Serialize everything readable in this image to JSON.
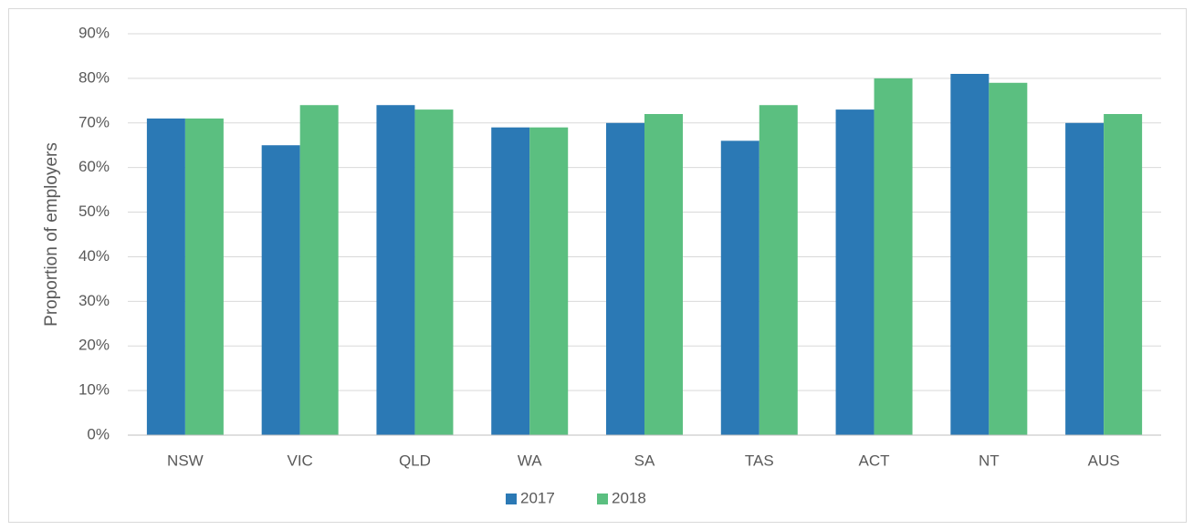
{
  "chart_data": {
    "type": "bar",
    "y_label": "Proportion of employers",
    "categories": [
      "NSW",
      "VIC",
      "QLD",
      "WA",
      "SA",
      "TAS",
      "ACT",
      "NT",
      "AUS"
    ],
    "series": [
      {
        "name": "2017",
        "color": "#2b79b5",
        "values": [
          71,
          65,
          74,
          69,
          70,
          66,
          73,
          81,
          70
        ]
      },
      {
        "name": "2018",
        "color": "#5bbf80",
        "values": [
          71,
          74,
          73,
          69,
          72,
          74,
          80,
          79,
          72
        ]
      }
    ],
    "ylim": [
      0,
      90
    ],
    "yticks": [
      {
        "value": 0,
        "label": "0%"
      },
      {
        "value": 10,
        "label": "10%"
      },
      {
        "value": 20,
        "label": "20%"
      },
      {
        "value": 30,
        "label": "30%"
      },
      {
        "value": 40,
        "label": "40%"
      },
      {
        "value": 50,
        "label": "50%"
      },
      {
        "value": 60,
        "label": "60%"
      },
      {
        "value": 70,
        "label": "70%"
      },
      {
        "value": 80,
        "label": "80%"
      },
      {
        "value": 90,
        "label": "90%"
      }
    ],
    "grid": true,
    "legend": "bottom"
  }
}
